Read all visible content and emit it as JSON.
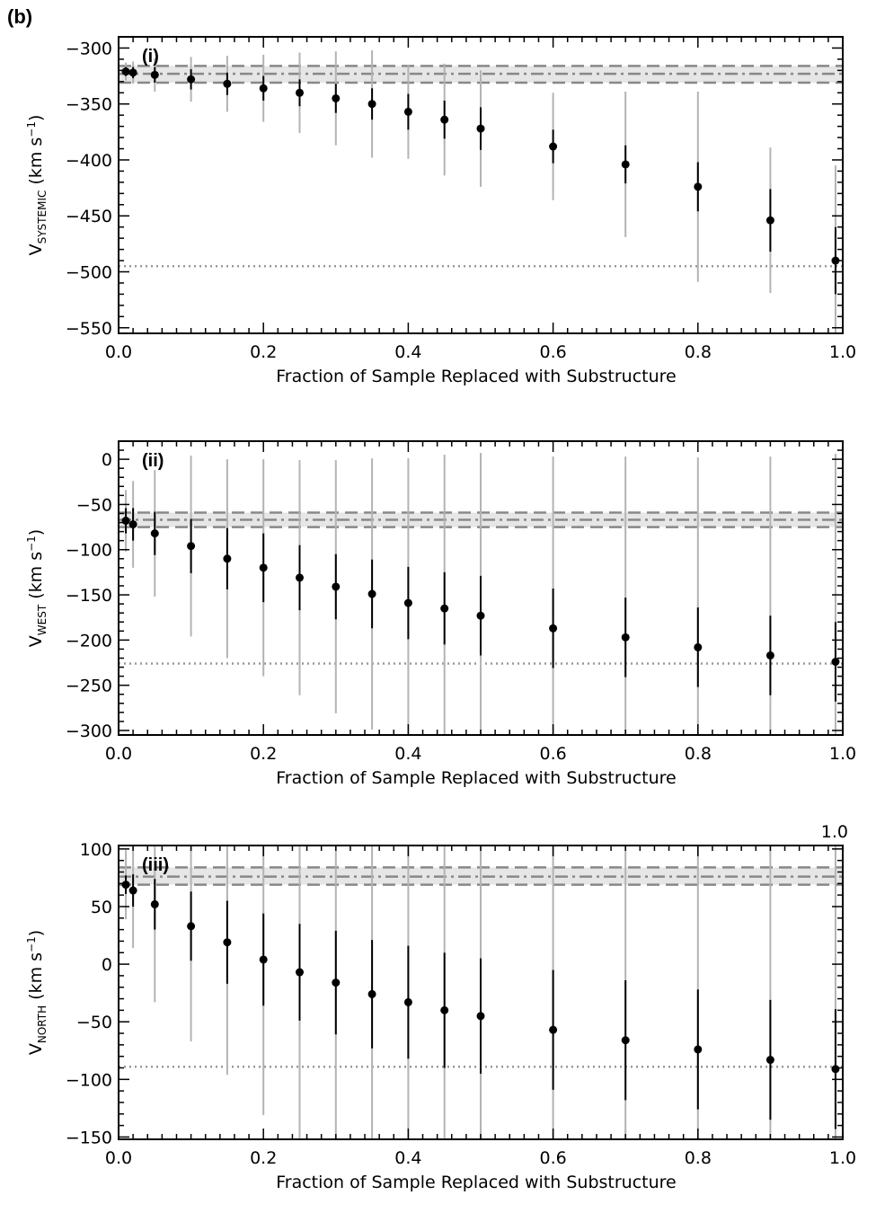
{
  "figure_label": "(b)",
  "corner_note": "1.0",
  "chart_data": [
    {
      "type": "scatter",
      "panel_label": "(i)",
      "xlabel": "Fraction of Sample Replaced with Substructure",
      "ylabel": {
        "main": "V",
        "sub": "SYSTEMIC",
        "unit_pre": " (km s",
        "unit_sup": "−1",
        "unit_post": ")"
      },
      "xlim": [
        0.0,
        1.0
      ],
      "ylim": [
        -555,
        -290
      ],
      "xticks": [
        0.0,
        0.2,
        0.4,
        0.6,
        0.8,
        1.0
      ],
      "xtick_labels": [
        "0.0",
        "0.2",
        "0.4",
        "0.6",
        "0.8",
        "1.0"
      ],
      "yticks": [
        -300,
        -350,
        -400,
        -450,
        -500,
        -550
      ],
      "ytick_labels": [
        "−300",
        "−350",
        "−400",
        "−450",
        "−500",
        "−550"
      ],
      "reference_band": {
        "center": -323,
        "lower": -331,
        "upper": -316
      },
      "reference_dotted": -495,
      "x": [
        0.01,
        0.02,
        0.05,
        0.1,
        0.15,
        0.2,
        0.25,
        0.3,
        0.35,
        0.4,
        0.45,
        0.5,
        0.6,
        0.7,
        0.8,
        0.9,
        0.99
      ],
      "y": [
        -321,
        -322,
        -324,
        -328,
        -332,
        -336,
        -340,
        -345,
        -350,
        -357,
        -364,
        -372,
        -388,
        -404,
        -424,
        -454,
        -490
      ],
      "err_inner": [
        4,
        5,
        7,
        9,
        10,
        11,
        12,
        13,
        14,
        16,
        17,
        19,
        15,
        17,
        22,
        28,
        30
      ],
      "err_outer": [
        8,
        10,
        15,
        20,
        25,
        30,
        36,
        42,
        48,
        42,
        50,
        52,
        48,
        65,
        85,
        65,
        85
      ]
    },
    {
      "type": "scatter",
      "panel_label": "(ii)",
      "xlabel": "Fraction of Sample Replaced with Substructure",
      "ylabel": {
        "main": "V",
        "sub": "WEST",
        "unit_pre": " (km s",
        "unit_sup": "−1",
        "unit_post": ")"
      },
      "xlim": [
        0.0,
        1.0
      ],
      "ylim": [
        -305,
        20
      ],
      "xticks": [
        0.0,
        0.2,
        0.4,
        0.6,
        0.8,
        1.0
      ],
      "xtick_labels": [
        "0.0",
        "0.2",
        "0.4",
        "0.6",
        "0.8",
        "1.0"
      ],
      "yticks": [
        0,
        -50,
        -100,
        -150,
        -200,
        -250,
        -300
      ],
      "ytick_labels": [
        "0",
        "−50",
        "−100",
        "−150",
        "−200",
        "−250",
        "−300"
      ],
      "reference_band": {
        "center": -67,
        "lower": -75,
        "upper": -59
      },
      "reference_dotted": -226,
      "x": [
        0.01,
        0.02,
        0.05,
        0.1,
        0.15,
        0.2,
        0.25,
        0.3,
        0.35,
        0.4,
        0.45,
        0.5,
        0.6,
        0.7,
        0.8,
        0.9,
        0.99
      ],
      "y": [
        -68,
        -72,
        -82,
        -96,
        -110,
        -120,
        -131,
        -141,
        -149,
        -159,
        -165,
        -173,
        -187,
        -197,
        -208,
        -217,
        -224
      ],
      "err_inner": [
        14,
        18,
        24,
        30,
        34,
        38,
        36,
        36,
        38,
        40,
        40,
        44,
        44,
        44,
        44,
        44,
        44
      ],
      "err_outer": [
        34,
        48,
        70,
        100,
        110,
        120,
        130,
        140,
        150,
        160,
        170,
        180,
        190,
        200,
        210,
        220,
        230
      ]
    },
    {
      "type": "scatter",
      "panel_label": "(iii)",
      "xlabel": "Fraction of Sample Replaced with Substructure",
      "ylabel": {
        "main": "V",
        "sub": "NORTH",
        "unit_pre": " (km s",
        "unit_sup": "−1",
        "unit_post": ")"
      },
      "xlim": [
        0.0,
        1.0
      ],
      "ylim": [
        -152,
        103
      ],
      "xticks": [
        0.0,
        0.2,
        0.4,
        0.6,
        0.8,
        1.0
      ],
      "xtick_labels": [
        "0.0",
        "0.2",
        "0.4",
        "0.6",
        "0.8",
        "1.0"
      ],
      "yticks": [
        100,
        50,
        0,
        -50,
        -100,
        -150
      ],
      "ytick_labels": [
        "100",
        "50",
        "0",
        "−50",
        "−100",
        "−150"
      ],
      "reference_band": {
        "center": 76,
        "lower": 69,
        "upper": 84
      },
      "reference_dotted": -89,
      "x": [
        0.01,
        0.02,
        0.05,
        0.1,
        0.15,
        0.2,
        0.25,
        0.3,
        0.35,
        0.4,
        0.45,
        0.5,
        0.6,
        0.7,
        0.8,
        0.9,
        0.99
      ],
      "y": [
        69,
        64,
        52,
        33,
        19,
        4,
        -7,
        -16,
        -26,
        -33,
        -40,
        -45,
        -57,
        -66,
        -74,
        -83,
        -91
      ],
      "err_inner": [
        8,
        14,
        22,
        30,
        36,
        40,
        42,
        45,
        47,
        49,
        50,
        50,
        52,
        52,
        52,
        52,
        52
      ],
      "err_outer": [
        30,
        50,
        85,
        100,
        115,
        135,
        155,
        170,
        180,
        190,
        200,
        210,
        230,
        240,
        250,
        260,
        270
      ]
    }
  ]
}
